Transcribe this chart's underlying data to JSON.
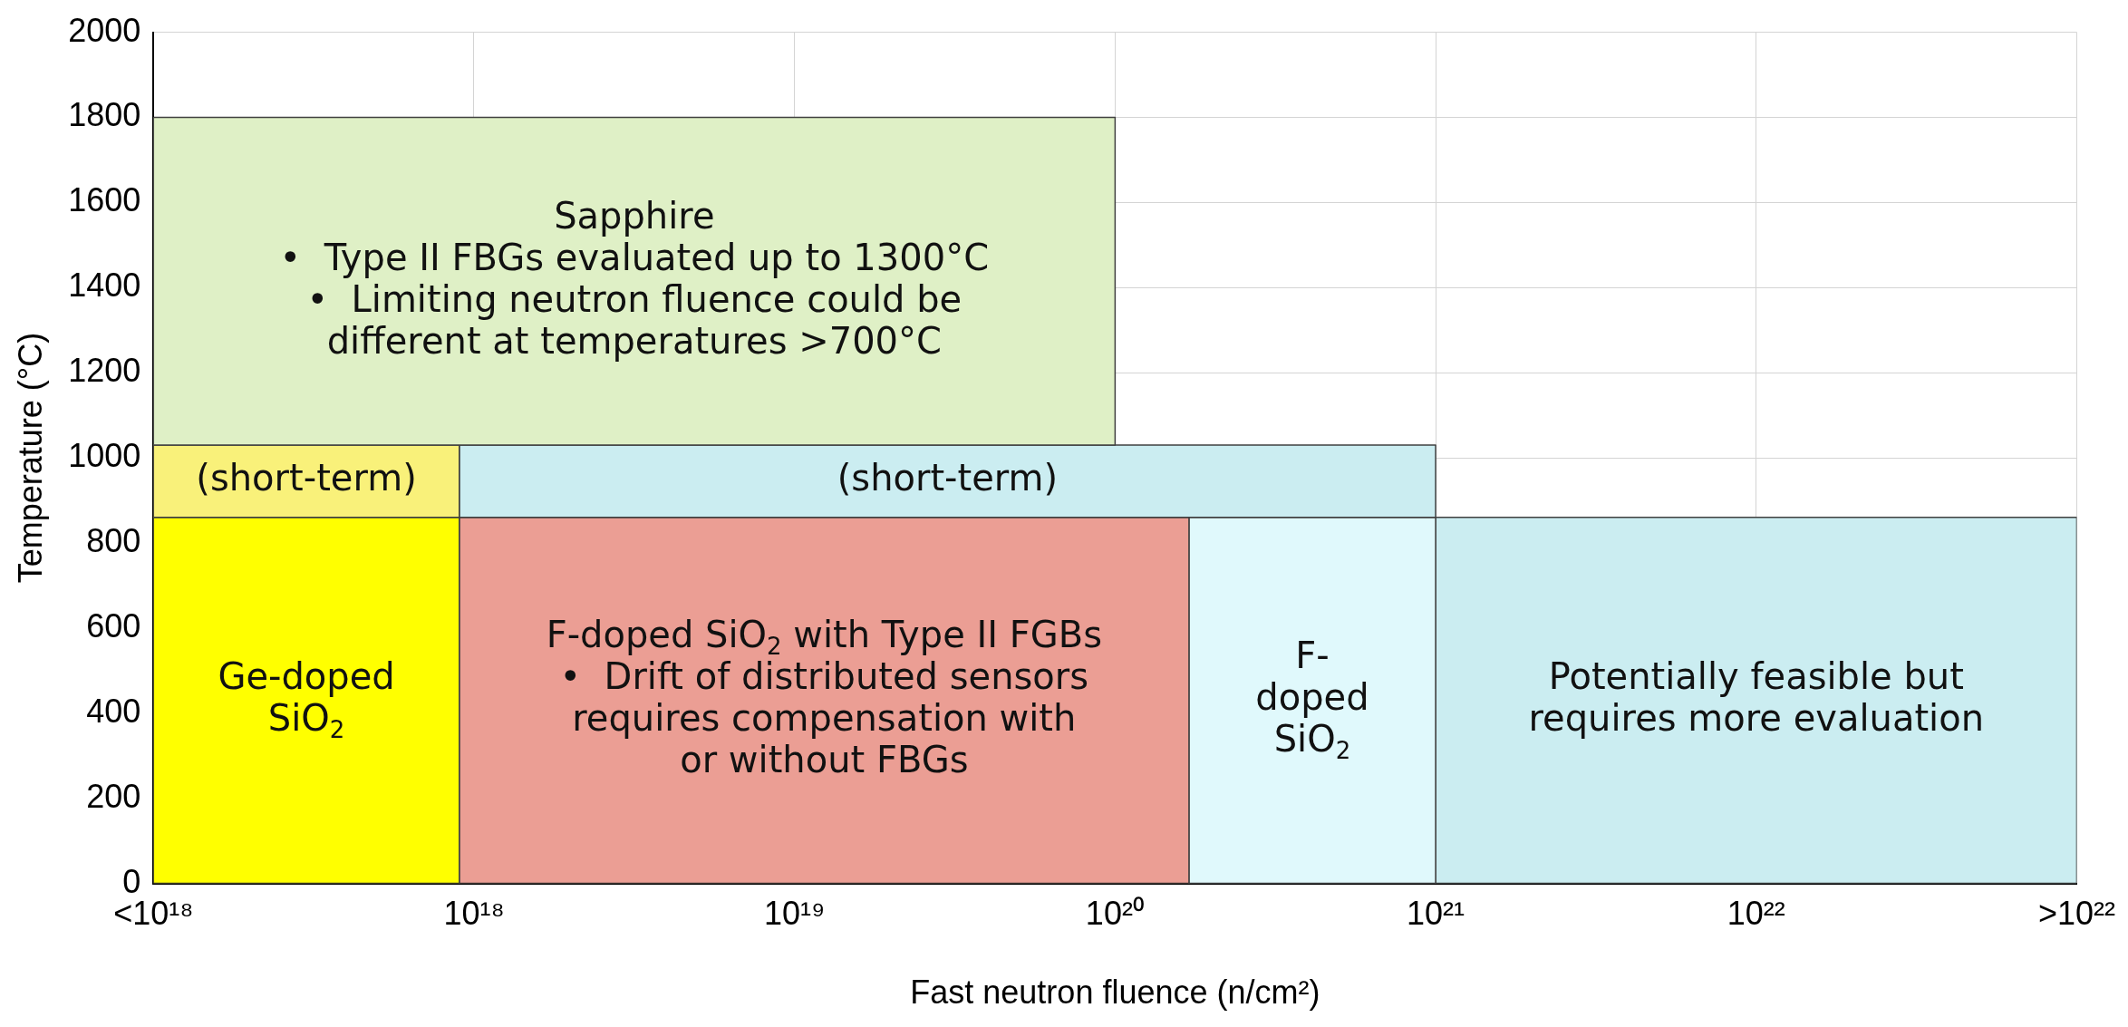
{
  "chart_data": {
    "type": "area",
    "xlabel": "Fast neutron fluence (n/cm²)",
    "ylabel": "Temperature (°C)",
    "log": "x",
    "xlim": [
      1e+17,
      1e+23
    ],
    "xticks": [
      {
        "value": 1e+17,
        "label": "<10¹⁸"
      },
      {
        "value": 1e+18,
        "label": "10¹⁸"
      },
      {
        "value": 1e+19,
        "label": "10¹⁹"
      },
      {
        "value": 1e+20,
        "label": "10²⁰"
      },
      {
        "value": 1e+21,
        "label": "10²¹"
      },
      {
        "value": 1e+22,
        "label": "10²²"
      },
      {
        "value": 1e+23,
        "label": ">10²²"
      }
    ],
    "ylim": [
      0,
      2000
    ],
    "yticks": [
      0,
      200,
      400,
      600,
      800,
      1000,
      1200,
      1400,
      1600,
      1800,
      2000
    ],
    "grid": true,
    "series": [
      {
        "name": "Sapphire\n•  Type II FBGs evaluated up to 1300°C\n•  Limiting neutron fluence could be\ndifferent at temperatures >700°C",
        "color": "#dff0c6",
        "x": [
          1e+17,
          1e+20,
          1e+20,
          1e+17,
          1e+17
        ],
        "values": [
          1800,
          1800,
          1030,
          1030,
          1800
        ]
      },
      {
        "name": "(short-term)",
        "color": "#f9f17a",
        "x": [
          1e+17,
          9e+17,
          9e+17,
          1e+17,
          1e+17
        ],
        "values": [
          1030,
          1030,
          860,
          860,
          1030
        ]
      },
      {
        "name": "(short-term)",
        "color": "#cbedf1",
        "x": [
          9e+17,
          1e+21,
          1e+21,
          9e+17,
          9e+17
        ],
        "values": [
          1030,
          1030,
          860,
          860,
          1030
        ]
      },
      {
        "name": "Ge-doped\nSiO$_{2}$",
        "color": "#ffff00",
        "x": [
          1e+17,
          9e+17,
          9e+17,
          1e+17,
          1e+17
        ],
        "values": [
          860,
          860,
          0,
          0,
          860
        ]
      },
      {
        "name": "F-doped SiO$_{2}$ with Type II FGBs\n•  Drift of distributed sensors\nrequires compensation with\nor without FBGs",
        "color": "#eb9e94",
        "x": [
          9e+17,
          1.7e+20,
          1.7e+20,
          9e+17,
          9e+17
        ],
        "values": [
          860,
          860,
          0,
          0,
          860
        ]
      },
      {
        "name": "F-\ndoped\nSiO$_{2}$",
        "color": "#e0f9fc",
        "x": [
          1.7e+20,
          1e+21,
          1e+21,
          1.7e+20,
          1.7e+20
        ],
        "values": [
          860,
          860,
          0,
          0,
          860
        ]
      },
      {
        "name": "Potentially feasible but\nrequires more evaluation",
        "color": "#cbedf1",
        "x": [
          1e+21,
          1e+23,
          1e+23,
          1e+21,
          1e+21
        ],
        "values": [
          860,
          860,
          0,
          0,
          860
        ]
      }
    ]
  }
}
